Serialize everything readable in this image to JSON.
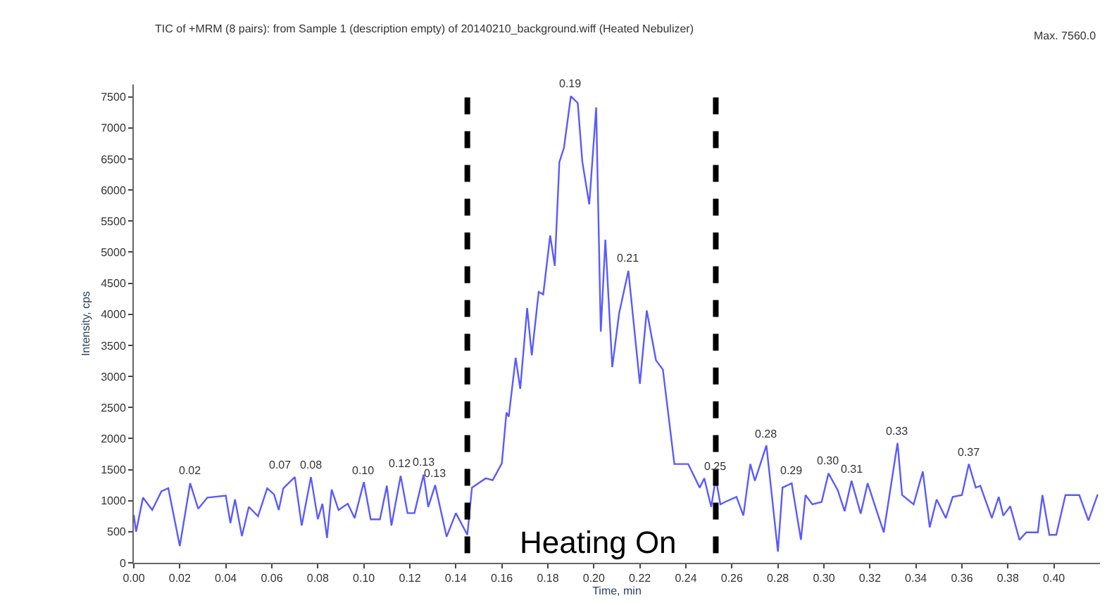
{
  "chart_data": {
    "type": "line",
    "title": "TIC of +MRM (8 pairs): from Sample 1 (description empty) of 20140210_background.wiff (Heated Nebulizer)",
    "xlabel": "Time, min",
    "ylabel": "Intensity, cps",
    "x": [
      0.0,
      0.001,
      0.004,
      0.008,
      0.012,
      0.015,
      0.02,
      0.0245,
      0.028,
      0.032,
      0.04,
      0.042,
      0.044,
      0.047,
      0.05,
      0.054,
      0.058,
      0.061,
      0.063,
      0.065,
      0.07,
      0.073,
      0.077,
      0.08,
      0.082,
      0.084,
      0.086,
      0.089,
      0.093,
      0.096,
      0.1,
      0.103,
      0.107,
      0.11,
      0.112,
      0.116,
      0.119,
      0.122,
      0.126,
      0.128,
      0.131,
      0.136,
      0.14,
      0.145,
      0.147,
      0.153,
      0.156,
      0.16,
      0.162,
      0.163,
      0.166,
      0.168,
      0.171,
      0.173,
      0.176,
      0.178,
      0.181,
      0.183,
      0.185,
      0.187,
      0.19,
      0.193,
      0.195,
      0.198,
      0.201,
      0.203,
      0.205,
      0.208,
      0.211,
      0.215,
      0.22,
      0.223,
      0.227,
      0.23,
      0.235,
      0.241,
      0.246,
      0.248,
      0.251,
      0.253,
      0.255,
      0.257,
      0.262,
      0.265,
      0.268,
      0.27,
      0.275,
      0.277,
      0.28,
      0.282,
      0.286,
      0.29,
      0.292,
      0.295,
      0.299,
      0.302,
      0.306,
      0.309,
      0.312,
      0.316,
      0.319,
      0.326,
      0.332,
      0.334,
      0.339,
      0.343,
      0.346,
      0.349,
      0.353,
      0.356,
      0.36,
      0.363,
      0.366,
      0.368,
      0.373,
      0.376,
      0.378,
      0.381,
      0.385,
      0.388,
      0.393,
      0.395,
      0.398,
      0.401,
      0.405,
      0.411,
      0.415,
      0.419
    ],
    "series": [
      {
        "color": "#5a5aff",
        "values": [
          770,
          500,
          1050,
          850,
          1150,
          1200,
          270,
          1280,
          870,
          1050,
          1080,
          640,
          1020,
          430,
          900,
          750,
          1200,
          1100,
          850,
          1200,
          1380,
          600,
          1380,
          700,
          950,
          400,
          1180,
          850,
          950,
          720,
          1300,
          700,
          700,
          1240,
          600,
          1400,
          800,
          800,
          1420,
          900,
          1250,
          420,
          800,
          450,
          1210,
          1360,
          1330,
          1600,
          2420,
          2350,
          3300,
          2800,
          4100,
          3340,
          4360,
          4320,
          5270,
          4780,
          6450,
          6680,
          7510,
          7400,
          6450,
          5770,
          7330,
          3720,
          5200,
          3150,
          4020,
          4700,
          2880,
          4060,
          3260,
          3110,
          1590,
          1590,
          1210,
          1360,
          900,
          1360,
          940,
          980,
          1060,
          760,
          1590,
          1320,
          1890,
          1210,
          180,
          1210,
          1280,
          370,
          1090,
          940,
          980,
          1440,
          1170,
          830,
          1320,
          790,
          1280,
          490,
          1930,
          1090,
          940,
          1470,
          570,
          1020,
          720,
          1060,
          1090,
          1590,
          1210,
          1240,
          720,
          1060,
          760,
          910,
          370,
          490,
          490,
          1090,
          450,
          450,
          1090,
          1090,
          680,
          1100
        ]
      }
    ],
    "xlim": [
      0,
      0.42
    ],
    "xticks": [
      {
        "value": 0,
        "label": "0.00"
      },
      0.02,
      0.04,
      0.06,
      0.08,
      {
        "value": 0.1,
        "label": "0.10"
      },
      0.12,
      0.14,
      0.16,
      0.18,
      {
        "value": 0.2,
        "label": "0.20"
      },
      0.22,
      0.24,
      0.26,
      0.28,
      {
        "value": 0.3,
        "label": "0.30"
      },
      0.32,
      0.34,
      0.36,
      0.38,
      {
        "value": 0.4,
        "label": "0.40"
      }
    ],
    "ylim": [
      0,
      7700
    ],
    "yticks": [
      0,
      500,
      1000,
      1500,
      2000,
      2500,
      3000,
      3500,
      4000,
      4500,
      5000,
      5500,
      6000,
      6500,
      7000,
      7500
    ],
    "marker": "none",
    "line_style": "solid",
    "ref_lines": [
      {
        "axis": "x",
        "value": 0.145,
        "color": "#000000",
        "line_style": "dashed"
      },
      {
        "axis": "x",
        "value": 0.253,
        "color": "#000000",
        "line_style": "dashed"
      }
    ],
    "annotations": [
      "Max. 7560.0",
      "Heating On",
      {
        "text": "0.02",
        "x": 0.0245,
        "y": 1280
      },
      {
        "text": "0.07",
        "x": 0.07,
        "y": 1380
      },
      {
        "text": "0.08",
        "x": 0.077,
        "y": 1380
      },
      {
        "text": "0.10",
        "x": 0.1,
        "y": 1300
      },
      {
        "text": "0.12",
        "x": 0.116,
        "y": 1400
      },
      {
        "text": "0.13",
        "x": 0.126,
        "y": 1420
      },
      {
        "text": "0.13",
        "x": 0.131,
        "y": 1250
      },
      {
        "text": "0.19",
        "x": 0.19,
        "y": 7510
      },
      {
        "text": "0.21",
        "x": 0.215,
        "y": 4700
      },
      {
        "text": "0.25",
        "x": 0.253,
        "y": 1360
      },
      {
        "text": "0.28",
        "x": 0.275,
        "y": 1890
      },
      {
        "text": "0.29",
        "x": 0.286,
        "y": 1280
      },
      {
        "text": "0.30",
        "x": 0.302,
        "y": 1440
      },
      {
        "text": "0.31",
        "x": 0.312,
        "y": 1320
      },
      {
        "text": "0.33",
        "x": 0.332,
        "y": 1930
      },
      {
        "text": "0.37",
        "x": 0.363,
        "y": 1590
      }
    ]
  }
}
